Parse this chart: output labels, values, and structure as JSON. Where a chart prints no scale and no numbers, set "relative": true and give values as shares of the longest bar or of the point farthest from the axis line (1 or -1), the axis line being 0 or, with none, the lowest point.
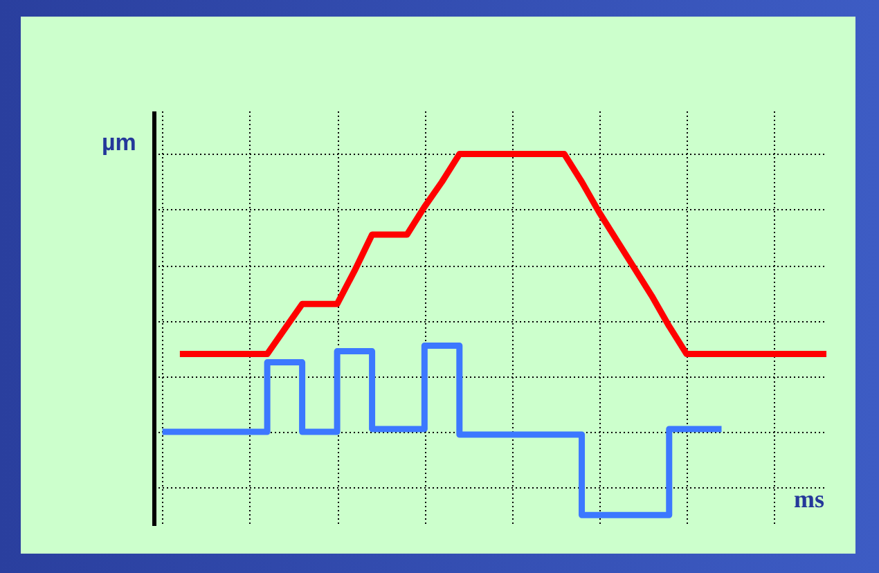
{
  "chart_data": {
    "type": "line",
    "relative": true,
    "xlabel": "ms",
    "ylabel": "µm",
    "grid": true,
    "tick_labels": false,
    "categories": [
      null,
      null,
      null,
      null,
      null,
      null,
      null,
      null,
      null,
      null,
      null,
      null,
      null,
      null,
      null,
      null,
      null,
      null,
      null,
      null,
      null,
      null,
      null,
      null,
      null,
      null,
      null,
      null,
      null,
      null,
      null,
      null,
      null,
      null,
      null,
      null,
      null,
      null,
      null
    ],
    "series": [
      {
        "type": "line",
        "color": "#ff0000",
        "values": [
          null,
          0.28,
          0.28,
          0.28,
          0.28,
          0.28,
          0.28,
          0.37,
          0.46,
          0.46,
          0.46,
          0.58,
          0.71,
          0.71,
          0.71,
          0.81,
          0.9,
          1,
          1,
          1,
          1,
          1,
          1,
          1,
          0.9,
          0.79,
          0.69,
          0.59,
          0.49,
          0.38,
          0.28,
          0.28,
          0.28,
          0.28,
          0.28,
          0.28,
          0.28,
          0.28,
          0.28
        ]
      },
      {
        "type": "step",
        "color": "#3c78ff",
        "values": [
          0,
          0,
          0,
          0,
          0,
          0,
          0.25,
          0.25,
          0,
          0,
          0.29,
          0.29,
          0.01,
          0.01,
          0.01,
          0.31,
          0.31,
          -0.01,
          -0.01,
          -0.01,
          -0.01,
          -0.01,
          -0.01,
          -0.01,
          -0.3,
          -0.3,
          -0.3,
          -0.3,
          -0.3,
          0.01,
          0.01,
          0.01,
          0.01,
          null,
          null,
          null,
          null,
          null,
          null
        ]
      }
    ]
  }
}
